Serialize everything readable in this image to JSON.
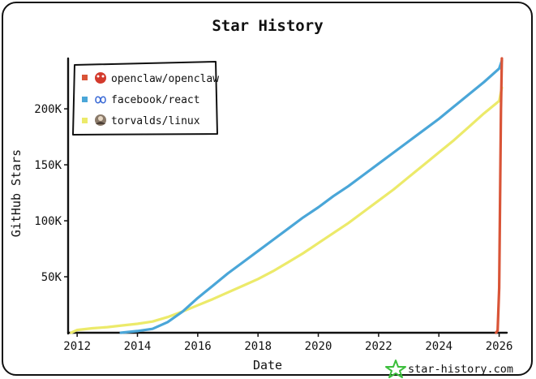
{
  "chart_data": {
    "type": "line",
    "title": "Star History",
    "xlabel": "Date",
    "ylabel": "GitHub Stars",
    "xlim": [
      2011.7,
      2026.2
    ],
    "ylim": [
      0,
      245000
    ],
    "x_ticks": [
      "2012",
      "2014",
      "2016",
      "2018",
      "2020",
      "2022",
      "2024",
      "2026"
    ],
    "y_ticks": [
      "50K",
      "100K",
      "150K",
      "200K"
    ],
    "legend_position": "top-left",
    "series": [
      {
        "name": "openclaw/openclaw",
        "color": "#d95437",
        "points": [
          [
            2025.9,
            0
          ],
          [
            2025.95,
            2000
          ],
          [
            2026.0,
            40000
          ],
          [
            2026.03,
            120000
          ],
          [
            2026.06,
            200000
          ],
          [
            2026.09,
            245000
          ]
        ]
      },
      {
        "name": "facebook/react",
        "color": "#4aa6d8",
        "points": [
          [
            2013.45,
            0
          ],
          [
            2014.0,
            1500
          ],
          [
            2014.5,
            3500
          ],
          [
            2015.0,
            9500
          ],
          [
            2015.5,
            19000
          ],
          [
            2016.0,
            31000
          ],
          [
            2016.5,
            42000
          ],
          [
            2017.0,
            53000
          ],
          [
            2017.5,
            63000
          ],
          [
            2018.0,
            73000
          ],
          [
            2018.5,
            83000
          ],
          [
            2019.0,
            93000
          ],
          [
            2019.5,
            103000
          ],
          [
            2020.0,
            112000
          ],
          [
            2020.5,
            122000
          ],
          [
            2021.0,
            131000
          ],
          [
            2021.5,
            141000
          ],
          [
            2022.0,
            151000
          ],
          [
            2022.5,
            161000
          ],
          [
            2023.0,
            171000
          ],
          [
            2023.5,
            181000
          ],
          [
            2024.0,
            191000
          ],
          [
            2024.5,
            202000
          ],
          [
            2025.0,
            213000
          ],
          [
            2025.5,
            224000
          ],
          [
            2026.0,
            236000
          ],
          [
            2026.09,
            243000
          ]
        ]
      },
      {
        "name": "torvalds/linux",
        "color": "#ecea6a",
        "points": [
          [
            2011.8,
            0
          ],
          [
            2012.0,
            2500
          ],
          [
            2012.5,
            4000
          ],
          [
            2013.0,
            5000
          ],
          [
            2013.5,
            6500
          ],
          [
            2014.0,
            8000
          ],
          [
            2014.5,
            10000
          ],
          [
            2015.0,
            14000
          ],
          [
            2015.5,
            19000
          ],
          [
            2016.0,
            24500
          ],
          [
            2016.5,
            30000
          ],
          [
            2017.0,
            36000
          ],
          [
            2017.5,
            42000
          ],
          [
            2018.0,
            48000
          ],
          [
            2018.5,
            55000
          ],
          [
            2019.0,
            63000
          ],
          [
            2019.5,
            71000
          ],
          [
            2020.0,
            80000
          ],
          [
            2020.5,
            89000
          ],
          [
            2021.0,
            98000
          ],
          [
            2021.5,
            108000
          ],
          [
            2022.0,
            118000
          ],
          [
            2022.5,
            128000
          ],
          [
            2023.0,
            139000
          ],
          [
            2023.5,
            150000
          ],
          [
            2024.0,
            161000
          ],
          [
            2024.5,
            172000
          ],
          [
            2025.0,
            184000
          ],
          [
            2025.5,
            196000
          ],
          [
            2026.0,
            207000
          ],
          [
            2026.09,
            219000
          ]
        ]
      }
    ]
  },
  "legend_icons": [
    "red-octopus-avatar-icon",
    "infinity-icon",
    "linux-avatar-icon"
  ],
  "brand": {
    "text": "star-history.com",
    "icon": "star-logo-icon",
    "color": "#3dbf3d"
  }
}
